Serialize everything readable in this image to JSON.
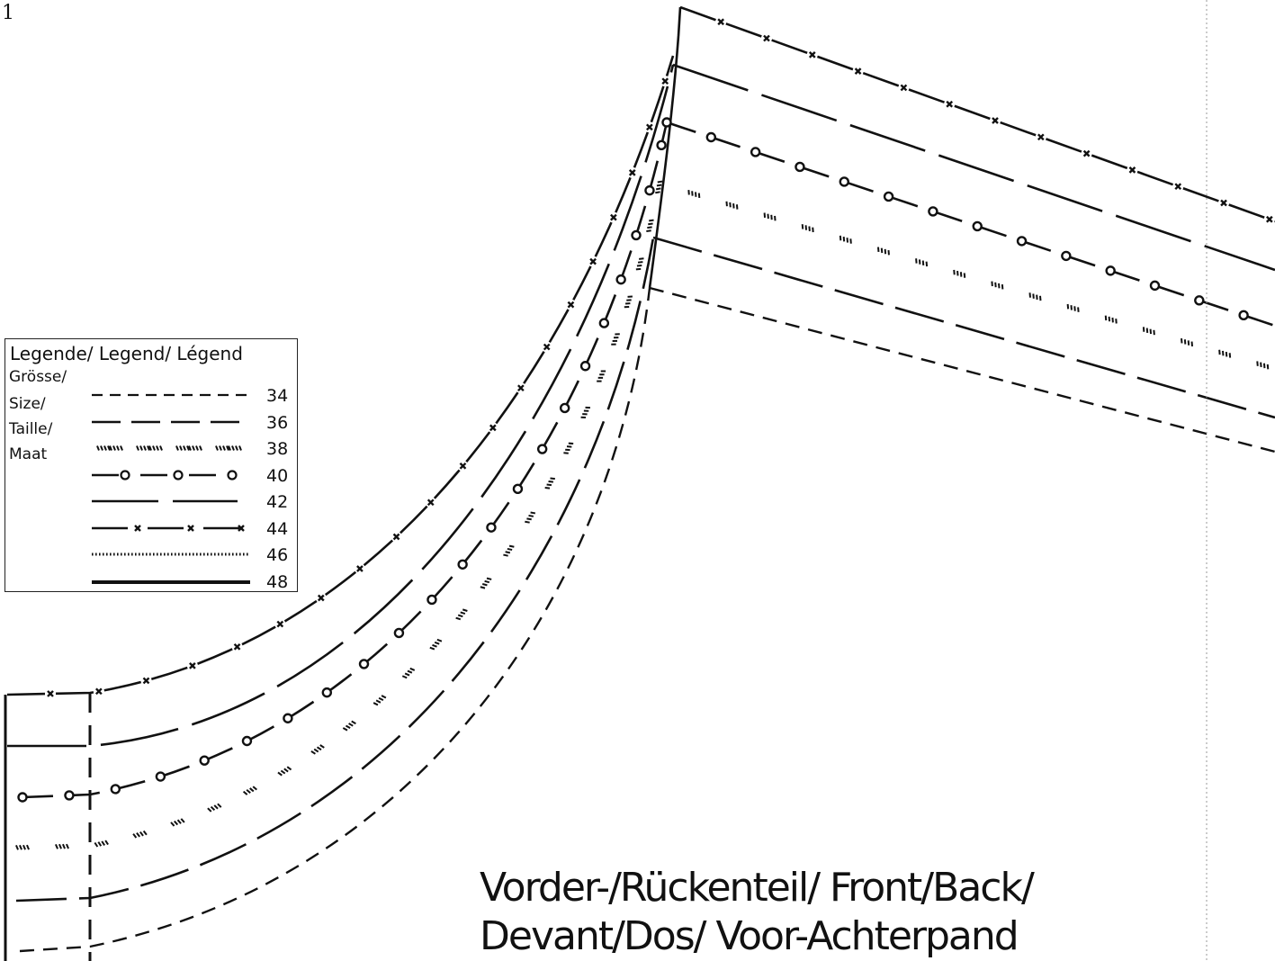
{
  "page_number": "1",
  "legend": {
    "title": "Legende/ Legend/ Légend",
    "size_words": [
      "Grösse/",
      "Size/",
      "Taille/",
      "Maat"
    ],
    "items": [
      {
        "label": "34",
        "style": "short-dash"
      },
      {
        "label": "36",
        "style": "long-dash"
      },
      {
        "label": "38",
        "style": "hatched"
      },
      {
        "label": "40",
        "style": "dash-circle"
      },
      {
        "label": "42",
        "style": "very-long-dash"
      },
      {
        "label": "44",
        "style": "dash-cross"
      },
      {
        "label": "46",
        "style": "dotted"
      },
      {
        "label": "48",
        "style": "solid-thick"
      }
    ]
  },
  "piece_title": {
    "line1": "Vorder-/Rückenteil/ Front/Back/",
    "line2": "Devant/Dos/ Voor-Achterpand"
  }
}
